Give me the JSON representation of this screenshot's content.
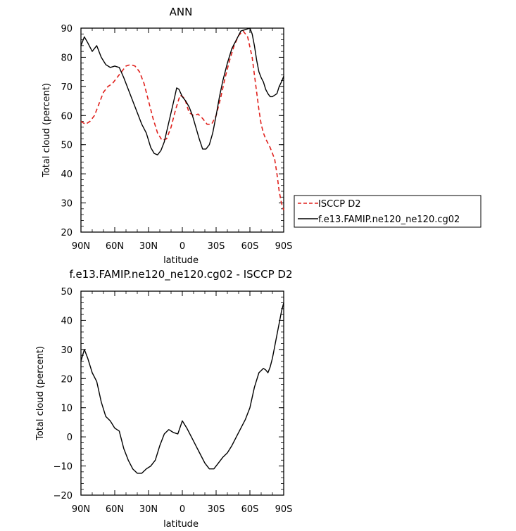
{
  "chart_data": [
    {
      "type": "line",
      "title": "ANN",
      "xlabel": "latitude",
      "ylabel": "Total cloud (percent)",
      "xlim": [
        90,
        -90
      ],
      "ylim": [
        20,
        90
      ],
      "x_ticks": [
        90,
        60,
        30,
        0,
        -30,
        -60,
        -90
      ],
      "x_tick_labels": [
        "90N",
        "60N",
        "30N",
        "0",
        "30S",
        "60S",
        "90S"
      ],
      "y_ticks": [
        20,
        30,
        40,
        50,
        60,
        70,
        80,
        90
      ],
      "y_tick_labels": [
        "20",
        "30",
        "40",
        "50",
        "60",
        "70",
        "80",
        "90"
      ],
      "legend_position": "right",
      "series": [
        {
          "name": "ISCCP D2",
          "color": "#e0201c",
          "dash": "dashed",
          "x": [
            90,
            86,
            82,
            78,
            74,
            70,
            66,
            62,
            58,
            54,
            50,
            46,
            42,
            38,
            34,
            30,
            26,
            22,
            18,
            14,
            10,
            6,
            2,
            -2,
            -6,
            -10,
            -14,
            -18,
            -22,
            -26,
            -30,
            -34,
            -38,
            -42,
            -46,
            -50,
            -54,
            -58,
            -62,
            -64,
            -66,
            -68,
            -70,
            -72,
            -74,
            -76,
            -78,
            -80,
            -82,
            -84,
            -86,
            -88,
            -90
          ],
          "y": [
            58,
            57,
            58,
            60,
            64,
            68,
            70,
            71,
            73,
            75,
            77,
            77.5,
            77,
            75,
            71,
            65,
            59,
            54,
            51.5,
            52,
            56,
            62,
            67,
            66,
            61,
            60,
            60.5,
            59,
            57,
            57,
            60,
            66,
            73,
            79,
            84,
            87.5,
            89,
            87,
            80,
            74,
            68,
            62,
            57,
            54,
            52,
            50.5,
            49,
            47,
            45,
            40,
            34,
            30,
            27.5
          ]
        },
        {
          "name": "f.e13.FAMIP.ne120_ne120.cg02",
          "color": "#000000",
          "dash": "solid",
          "x": [
            90,
            87,
            84,
            80,
            76,
            72,
            68,
            64,
            60,
            56,
            52,
            48,
            44,
            40,
            36,
            32,
            28,
            25,
            22,
            19,
            16,
            13,
            10,
            7,
            5,
            3,
            0,
            -3,
            -6,
            -9,
            -12,
            -15,
            -18,
            -21,
            -24,
            -27,
            -30,
            -33,
            -36,
            -40,
            -44,
            -48,
            -52,
            -56,
            -60,
            -62,
            -64,
            -66,
            -68,
            -70,
            -72,
            -74,
            -76,
            -78,
            -80,
            -82,
            -84,
            -86,
            -88,
            -90
          ],
          "y": [
            84,
            87,
            85,
            82,
            84,
            80,
            77.5,
            76.5,
            77,
            76.5,
            73,
            69,
            65,
            61,
            57,
            54,
            49,
            47,
            46.5,
            48,
            51,
            56,
            61,
            66,
            69.5,
            69,
            66.5,
            65,
            63,
            60,
            56,
            52,
            48.5,
            48.5,
            50,
            54,
            60,
            66.5,
            72,
            78,
            83,
            86,
            89,
            89.5,
            90,
            88,
            84,
            79,
            75,
            73,
            71.5,
            69,
            67.5,
            66.5,
            66.5,
            67,
            67.5,
            70,
            71.5,
            73.5
          ]
        }
      ]
    },
    {
      "type": "line",
      "title": "f.e13.FAMIP.ne120_ne120.cg02 - ISCCP D2",
      "xlabel": "latitude",
      "ylabel": "Total cloud (percent)",
      "xlim": [
        90,
        -90
      ],
      "ylim": [
        -20,
        50
      ],
      "x_ticks": [
        90,
        60,
        30,
        0,
        -30,
        -60,
        -90
      ],
      "x_tick_labels": [
        "90N",
        "60N",
        "30N",
        "0",
        "30S",
        "60S",
        "90S"
      ],
      "y_ticks": [
        -20,
        -10,
        0,
        10,
        20,
        30,
        40,
        50
      ],
      "y_tick_labels": [
        "−20",
        "−10",
        "0",
        "10",
        "20",
        "30",
        "40",
        "50"
      ],
      "series": [
        {
          "color": "#000000",
          "dash": "solid",
          "x": [
            90,
            87,
            84,
            80,
            76,
            72,
            68,
            64,
            60,
            56,
            52,
            48,
            44,
            40,
            36,
            32,
            28,
            24,
            20,
            16,
            12,
            8,
            4,
            0,
            -4,
            -8,
            -12,
            -16,
            -20,
            -24,
            -28,
            -32,
            -36,
            -40,
            -44,
            -48,
            -52,
            -56,
            -60,
            -64,
            -68,
            -72,
            -74,
            -76,
            -78,
            -80,
            -82,
            -84,
            -86,
            -88,
            -90
          ],
          "y": [
            26,
            30,
            27,
            22,
            19,
            12,
            7,
            5.5,
            3,
            2,
            -4,
            -8,
            -11,
            -12.5,
            -12.5,
            -11,
            -10,
            -8,
            -3,
            1,
            2.5,
            1.5,
            1,
            5.5,
            3,
            0,
            -3,
            -6,
            -9,
            -11,
            -11,
            -9,
            -7,
            -5.5,
            -3,
            0,
            3,
            6,
            10,
            17,
            22,
            23.5,
            23,
            22,
            24,
            27,
            31,
            35,
            39,
            43,
            46
          ]
        }
      ]
    }
  ]
}
